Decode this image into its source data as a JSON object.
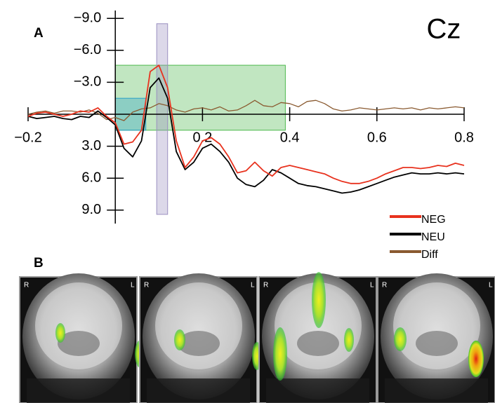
{
  "chart_data": {
    "type": "line",
    "title": "Cz",
    "x": [
      -0.2,
      -0.18,
      -0.16,
      -0.14,
      -0.12,
      -0.1,
      -0.08,
      -0.06,
      -0.04,
      -0.02,
      0,
      0.02,
      0.04,
      0.06,
      0.08,
      0.1,
      0.12,
      0.14,
      0.16,
      0.18,
      0.2,
      0.22,
      0.24,
      0.26,
      0.28,
      0.3,
      0.32,
      0.34,
      0.36,
      0.38,
      0.4,
      0.42,
      0.44,
      0.46,
      0.48,
      0.5,
      0.52,
      0.54,
      0.56,
      0.58,
      0.6,
      0.62,
      0.64,
      0.66,
      0.68,
      0.7,
      0.72,
      0.74,
      0.76,
      0.78,
      0.8
    ],
    "series": [
      {
        "name": "NEG",
        "color": "#e8321e",
        "values": [
          0.2,
          -0.1,
          -0.2,
          0,
          0.2,
          0,
          -0.3,
          -0.2,
          -0.6,
          0.2,
          0.8,
          2.8,
          2.6,
          1.5,
          -4.0,
          -4.6,
          -2.5,
          2.5,
          5.0,
          4.0,
          2.5,
          2.2,
          2.8,
          4.0,
          5.5,
          5.3,
          4.5,
          5.3,
          5.8,
          5.0,
          4.8,
          5.0,
          5.2,
          5.4,
          5.6,
          6.0,
          6.3,
          6.5,
          6.5,
          6.3,
          6.0,
          5.6,
          5.3,
          5.0,
          5.0,
          5.1,
          5.0,
          4.8,
          4.9,
          4.6,
          4.8
        ]
      },
      {
        "name": "NEU",
        "color": "#000000",
        "values": [
          0.2,
          0.4,
          0.3,
          0.2,
          0.4,
          0.5,
          0.2,
          0.3,
          -0.3,
          0.3,
          1.0,
          3.2,
          4.0,
          2.5,
          -2.5,
          -3.4,
          -1.5,
          3.5,
          5.2,
          4.5,
          3.2,
          2.8,
          3.5,
          4.5,
          6.0,
          6.6,
          6.8,
          6.2,
          5.2,
          5.5,
          6.0,
          6.5,
          6.7,
          6.8,
          7.0,
          7.2,
          7.4,
          7.3,
          7.1,
          6.8,
          6.5,
          6.2,
          5.9,
          5.7,
          5.5,
          5.6,
          5.6,
          5.5,
          5.6,
          5.5,
          5.6
        ]
      },
      {
        "name": "Diff",
        "color": "#8a5a30",
        "values": [
          0.0,
          -0.2,
          -0.3,
          -0.1,
          -0.3,
          -0.3,
          -0.2,
          -0.4,
          -0.1,
          0.5,
          0.3,
          0.6,
          -0.2,
          -0.5,
          -0.6,
          -1.0,
          -0.8,
          -0.4,
          -0.2,
          -0.5,
          -0.6,
          -0.4,
          -0.7,
          -0.3,
          -0.4,
          -0.8,
          -1.3,
          -0.8,
          -0.7,
          -1.1,
          -1.0,
          -0.7,
          -1.2,
          -1.3,
          -1.0,
          -0.5,
          -0.3,
          -0.4,
          -0.6,
          -0.5,
          -0.4,
          -0.5,
          -0.6,
          -0.5,
          -0.6,
          -0.4,
          -0.6,
          -0.5,
          -0.6,
          -0.7,
          -0.6
        ]
      }
    ],
    "xlim": [
      -0.2,
      0.8
    ],
    "ylim": [
      10,
      -10
    ],
    "xticks": [
      {
        "value": -0.2,
        "label": "−0.2"
      },
      0.2,
      0.4,
      0.6,
      0.8
    ],
    "yticks": [
      {
        "value": -9,
        "label": "−9.0"
      },
      {
        "value": -6,
        "label": "−6.0"
      },
      {
        "value": -3,
        "label": "−3.0"
      },
      {
        "value": 3,
        "label": "3.0"
      },
      {
        "value": 6,
        "label": "6.0"
      },
      {
        "value": 9,
        "label": "9.0"
      }
    ],
    "windows": [
      {
        "x": [
          0,
          0.39
        ],
        "y": [
          -4.6,
          1.5
        ],
        "color": "#4cb84c"
      },
      {
        "x": [
          0,
          0.07
        ],
        "y": [
          -1.5,
          1.5
        ],
        "color": "#2aa0c8"
      },
      {
        "x": [
          0.095,
          0.12
        ],
        "y": [
          -8.5,
          9.4
        ],
        "color": "#9b90c0"
      }
    ],
    "legend": "lower right"
  },
  "figure": {
    "panel_a": "A",
    "panel_b": "B",
    "orientation": [
      "R",
      "L"
    ]
  }
}
